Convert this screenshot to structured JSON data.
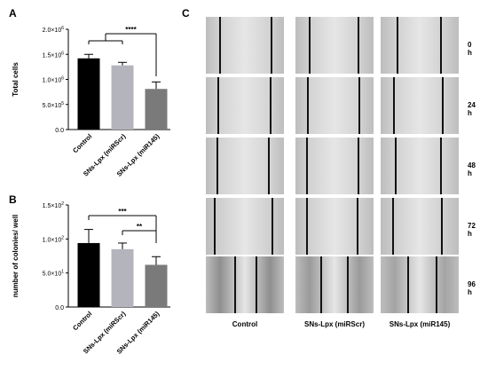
{
  "panels": {
    "a": "A",
    "b": "B",
    "c": "C"
  },
  "chart_data": [
    {
      "type": "bar",
      "ylabel": "Total cells",
      "categories": [
        "Control",
        "SNs-Lpx (miRScr)",
        "SNs-Lpx (miR145)"
      ],
      "values": [
        1420000,
        1280000,
        810000
      ],
      "errors": [
        80000,
        60000,
        140000
      ],
      "bar_colors": [
        "#000000",
        "#b4b4bc",
        "#7a7a7a"
      ],
      "ylim": [
        0,
        2000000
      ],
      "yticks": [
        0,
        500000,
        1000000,
        1500000,
        2000000
      ],
      "ytick_labels": [
        {
          "base": "0.0",
          "exp": ""
        },
        {
          "base": "5.0×10",
          "exp": "5"
        },
        {
          "base": "1.0×10",
          "exp": "6"
        },
        {
          "base": "1.5×10",
          "exp": "6"
        },
        {
          "base": "2.0×10",
          "exp": "6"
        }
      ],
      "significance": [
        {
          "from": 0,
          "to": 2,
          "label": "****",
          "pooled_from": [
            0,
            1
          ]
        }
      ]
    },
    {
      "type": "bar",
      "ylabel": "number of colonies/ well",
      "categories": [
        "Control",
        "SNs-Lpx (miRScr)",
        "SNs-Lpx (miR145)"
      ],
      "values": [
        94,
        85,
        62
      ],
      "errors": [
        20,
        9,
        12
      ],
      "bar_colors": [
        "#000000",
        "#b4b4bc",
        "#7a7a7a"
      ],
      "ylim": [
        0,
        150
      ],
      "yticks": [
        0,
        50,
        100,
        150
      ],
      "ytick_labels": [
        {
          "base": "0.0",
          "exp": ""
        },
        {
          "base": "5.0×10",
          "exp": "1"
        },
        {
          "base": "1.0×10",
          "exp": "2"
        },
        {
          "base": "1.5×10",
          "exp": "2"
        }
      ],
      "significance": [
        {
          "from": 0,
          "to": 2,
          "label": "***"
        },
        {
          "from": 1,
          "to": 2,
          "label": "**"
        }
      ]
    }
  ],
  "image_grid": {
    "rows": [
      "0 h",
      "24 h",
      "48 h",
      "72 h",
      "96 h"
    ],
    "columns": [
      "Control",
      "SNs-Lpx (miRScr)",
      "SNs-Lpx (miR145)"
    ]
  }
}
